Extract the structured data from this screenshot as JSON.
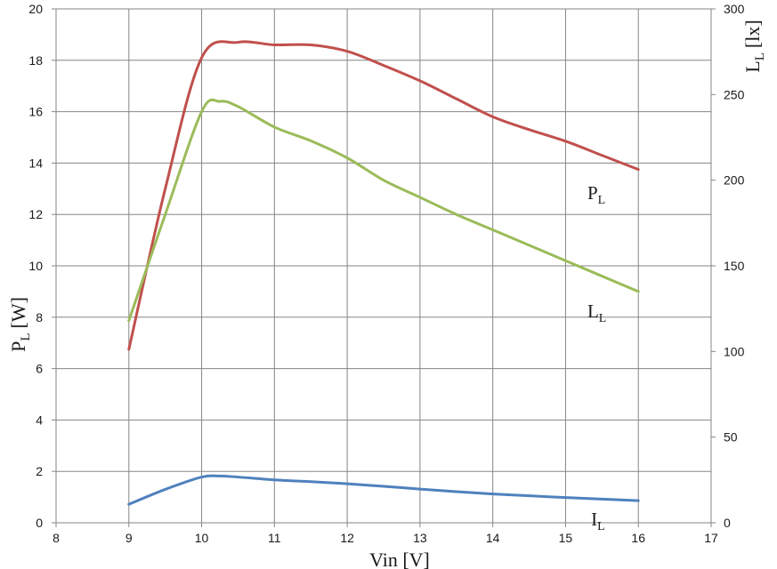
{
  "chart_data": {
    "type": "line",
    "xlabel": "Vin [V]",
    "ylabel": {
      "main": "P",
      "sub": "L",
      "unit": "[W]"
    },
    "y2label": {
      "main": "L",
      "sub": "L",
      "unit": "[lx]"
    },
    "xlim": [
      8,
      17
    ],
    "ylim": [
      0,
      20
    ],
    "y2lim": [
      0,
      300
    ],
    "xticks": [
      8,
      9,
      10,
      11,
      12,
      13,
      14,
      15,
      16,
      17
    ],
    "yticks": [
      0,
      2,
      4,
      6,
      8,
      10,
      12,
      14,
      16,
      18,
      20
    ],
    "y2ticks": [
      0,
      50,
      100,
      150,
      200,
      250,
      300
    ],
    "grid": true,
    "series": [
      {
        "name": "P",
        "name_sub": "L",
        "axis": "left",
        "color": "#c0504d",
        "x": [
          9,
          9.5,
          10,
          10.5,
          11,
          11.5,
          12,
          12.5,
          13,
          13.5,
          14,
          14.5,
          15,
          15.5,
          16
        ],
        "values": [
          6.75,
          13.0,
          18.1,
          18.7,
          18.6,
          18.6,
          18.35,
          17.8,
          17.2,
          16.5,
          15.8,
          15.3,
          14.85,
          14.3,
          13.75
        ]
      },
      {
        "name": "L",
        "name_sub": "L",
        "axis": "right",
        "color": "#9bbb59",
        "x": [
          9,
          9.5,
          10,
          10.25,
          10.5,
          11,
          11.5,
          12,
          12.5,
          13,
          13.5,
          14,
          14.5,
          15,
          15.5,
          16
        ],
        "values": [
          118,
          180,
          240,
          246,
          243,
          231,
          223,
          213,
          200,
          190,
          180,
          171,
          162,
          153,
          144,
          135
        ]
      },
      {
        "name": "I",
        "name_sub": "L",
        "axis": "left",
        "color": "#4f81bd",
        "x": [
          9,
          9.5,
          10,
          10.25,
          10.5,
          11,
          11.5,
          12,
          12.5,
          13,
          13.5,
          14,
          14.5,
          15,
          15.5,
          16
        ],
        "values": [
          0.72,
          1.3,
          1.78,
          1.82,
          1.78,
          1.67,
          1.6,
          1.52,
          1.42,
          1.31,
          1.21,
          1.12,
          1.05,
          0.98,
          0.92,
          0.86
        ]
      }
    ]
  }
}
